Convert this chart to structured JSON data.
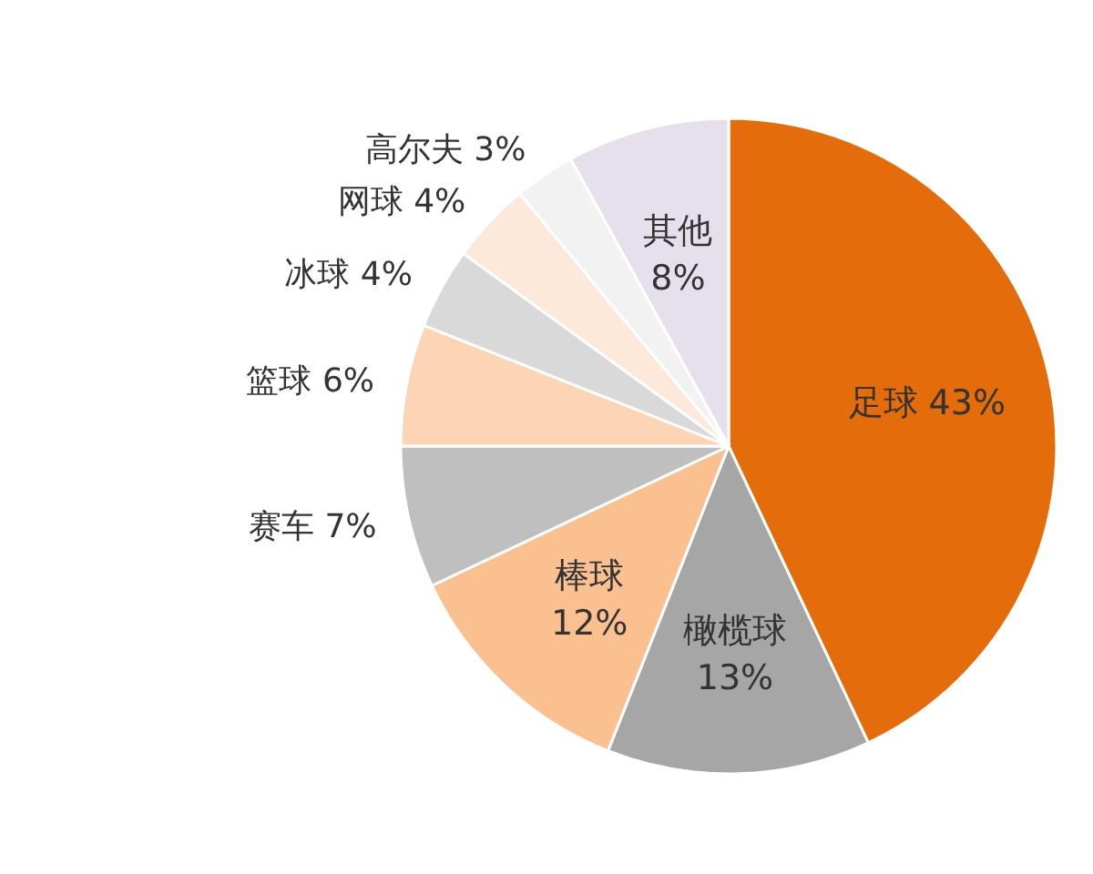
{
  "chart_data": {
    "type": "pie",
    "categories": [
      "足球",
      "橄榄球",
      "棒球",
      "赛车",
      "篮球",
      "冰球",
      "网球",
      "高尔夫",
      "其他"
    ],
    "values": [
      43,
      13,
      12,
      7,
      6,
      4,
      4,
      3,
      8
    ],
    "value_labels": [
      "43%",
      "13%",
      "12%",
      "7%",
      "6%",
      "4%",
      "4%",
      "3%",
      "8%"
    ],
    "colors": [
      "#e46c0a",
      "#a6a6a6",
      "#fac090",
      "#bfbfbf",
      "#fcd5b5",
      "#d9d9d9",
      "#fde9d9",
      "#f2f2f2",
      "#e6e0ec"
    ]
  }
}
